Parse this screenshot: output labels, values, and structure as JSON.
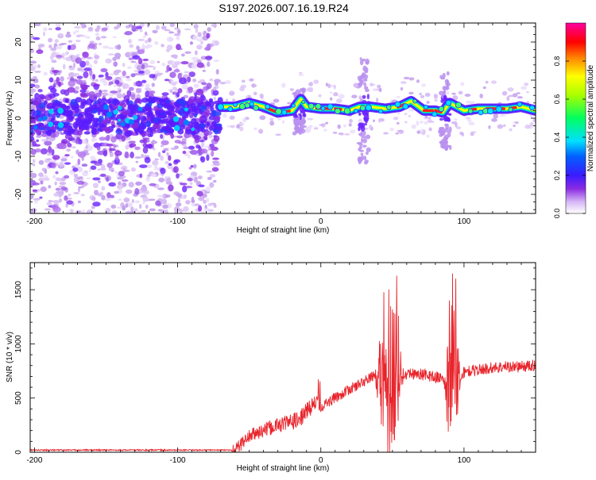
{
  "title": "S197.2026.007.16.19.R24",
  "chart_data": [
    {
      "type": "heatmap",
      "name": "spectrogram",
      "xlabel": "Height of straight line (km)",
      "ylabel": "Frequency (Hz)",
      "xlim": [
        -203,
        150
      ],
      "ylim": [
        -25,
        25
      ],
      "xticks": [
        -200,
        -100,
        0,
        100
      ],
      "yticks": [
        -20,
        -10,
        0,
        10,
        20
      ],
      "colorbar": {
        "label": "Normalized spectral amplitude",
        "range": [
          0,
          1
        ],
        "ticks": [
          0.0,
          0.2,
          0.4,
          0.6,
          0.8
        ],
        "tick_labels": [
          "0.0",
          "0.2",
          "0.4",
          "0.6",
          "0.8"
        ]
      },
      "ridge": {
        "x": [
          -70,
          -60,
          -50,
          -40,
          -30,
          -20,
          -14,
          -10,
          0,
          10,
          20,
          27,
          35,
          45,
          55,
          63,
          72,
          80,
          85,
          90,
          100,
          110,
          120,
          130,
          140,
          150
        ],
        "y": [
          3,
          3,
          4,
          3,
          1.5,
          2,
          5,
          3,
          2.5,
          2.5,
          2,
          3,
          3,
          2.5,
          3,
          4.5,
          2,
          2,
          1.5,
          4,
          2,
          2.5,
          2.5,
          2.5,
          3,
          2
        ]
      }
    },
    {
      "type": "line",
      "name": "snr",
      "xlabel": "Height of straight line (km)",
      "ylabel": "SNR (10 * v/v)",
      "xlim": [
        -203,
        150
      ],
      "ylim": [
        0,
        1750
      ],
      "xticks": [
        -200,
        -100,
        0,
        100
      ],
      "yticks": [
        0,
        500,
        1000,
        1500
      ],
      "color": "#e8242b",
      "anchors": {
        "x": [
          -203,
          -60,
          -50,
          -30,
          -15,
          -10,
          -5,
          0,
          10,
          20,
          30,
          36,
          40,
          45,
          50,
          55,
          60,
          70,
          85,
          88,
          92,
          95,
          100,
          110,
          120,
          130,
          140,
          150
        ],
        "y": [
          20,
          20,
          150,
          250,
          300,
          380,
          450,
          420,
          500,
          580,
          650,
          700,
          760,
          650,
          700,
          720,
          730,
          720,
          680,
          650,
          720,
          650,
          740,
          760,
          780,
          790,
          790,
          800
        ]
      }
    }
  ]
}
